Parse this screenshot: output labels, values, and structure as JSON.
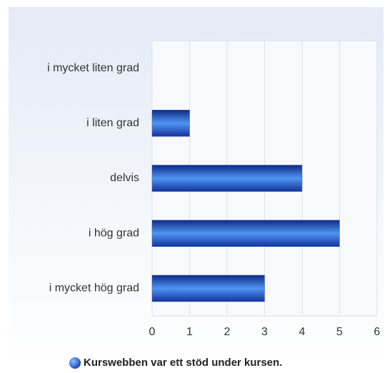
{
  "chart_data": {
    "type": "hbar",
    "categories": [
      "i mycket liten grad",
      "i liten grad",
      "delvis",
      "i hög grad",
      "i mycket hög grad"
    ],
    "series": [
      {
        "name": "Kurswebben var ett stöd under kursen.",
        "color": "#2a5fd0",
        "values": [
          0,
          1,
          4,
          5,
          3
        ]
      }
    ],
    "xlim": [
      0,
      6
    ],
    "xticks": [
      0,
      1,
      2,
      3,
      4,
      5,
      6
    ],
    "grid": true,
    "legend": "bottom"
  }
}
